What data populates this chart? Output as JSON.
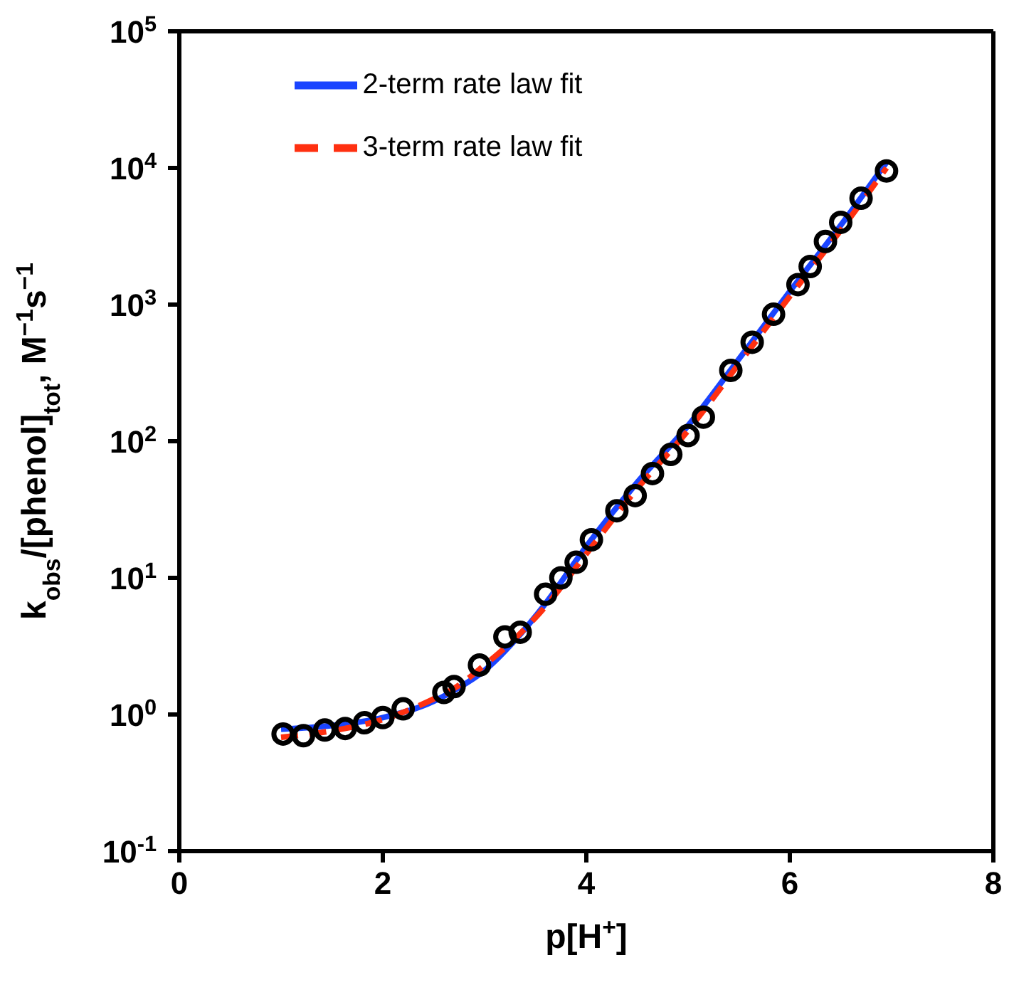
{
  "chart_data": {
    "type": "line",
    "xlabel": "p[H$^{+}$]",
    "ylabel": "k$_{obs}$/[phenol]$_{tot}$, M$^{−1}$s$^{−1}$",
    "xlim": [
      0,
      8
    ],
    "xticks": [
      0,
      2,
      4,
      6,
      8
    ],
    "ylim": [
      0.1,
      100000
    ],
    "yticks": [
      {
        "value": 0.1,
        "label": "10$^{-1}$"
      },
      {
        "value": 1,
        "label": "10$^{0}$"
      },
      {
        "value": 10,
        "label": "10$^{1}$"
      },
      {
        "value": 100,
        "label": "10$^{2}$"
      },
      {
        "value": 1000,
        "label": "10$^{3}$"
      },
      {
        "value": 10000,
        "label": "10$^{4}$"
      },
      {
        "value": 100000,
        "label": "10$^{5}$"
      }
    ],
    "log": "y",
    "grid": false,
    "legend": "top left",
    "series": [
      {
        "type": "scatter",
        "color": "#000000",
        "marker": "circle",
        "x": [
          1.02,
          1.22,
          1.43,
          1.63,
          1.82,
          2.0,
          2.2,
          2.6,
          2.7,
          2.95,
          3.2,
          3.35,
          3.6,
          3.75,
          3.9,
          4.05,
          4.3,
          4.48,
          4.65,
          4.83,
          5.0,
          5.15,
          5.42,
          5.63,
          5.84,
          6.08,
          6.2,
          6.35,
          6.5,
          6.7,
          6.95
        ],
        "values": [
          0.72,
          0.7,
          0.77,
          0.79,
          0.87,
          0.95,
          1.1,
          1.45,
          1.6,
          2.3,
          3.7,
          4.0,
          7.6,
          10,
          13,
          19,
          31,
          40,
          58,
          80,
          110,
          150,
          330,
          530,
          850,
          1400,
          1900,
          2900,
          4000,
          6000,
          9500
        ]
      },
      {
        "name": "2-term rate law fit",
        "color": "#1a44ff",
        "marker": "none",
        "line_style": "solid",
        "x": [
          1,
          1.5,
          2,
          2.5,
          2.7,
          3,
          3.3,
          3.6,
          4,
          4.5,
          5,
          5.5,
          6,
          6.5,
          6.95
        ],
        "values": [
          0.78,
          0.83,
          0.95,
          1.25,
          1.5,
          2.1,
          3.5,
          6.5,
          17,
          50,
          130,
          400,
          1250,
          3800,
          11000
        ]
      },
      {
        "name": "3-term rate law fit",
        "color": "#ff3010",
        "marker": "none",
        "line_style": "dashed",
        "x": [
          1,
          1.5,
          2,
          2.5,
          2.7,
          3,
          3.3,
          3.6,
          4,
          4.5,
          5,
          5.5,
          6,
          6.5,
          6.95
        ],
        "values": [
          0.68,
          0.76,
          0.92,
          1.3,
          1.55,
          2.3,
          3.6,
          6.2,
          15,
          45,
          120,
          370,
          1150,
          3500,
          10000
        ]
      }
    ]
  }
}
